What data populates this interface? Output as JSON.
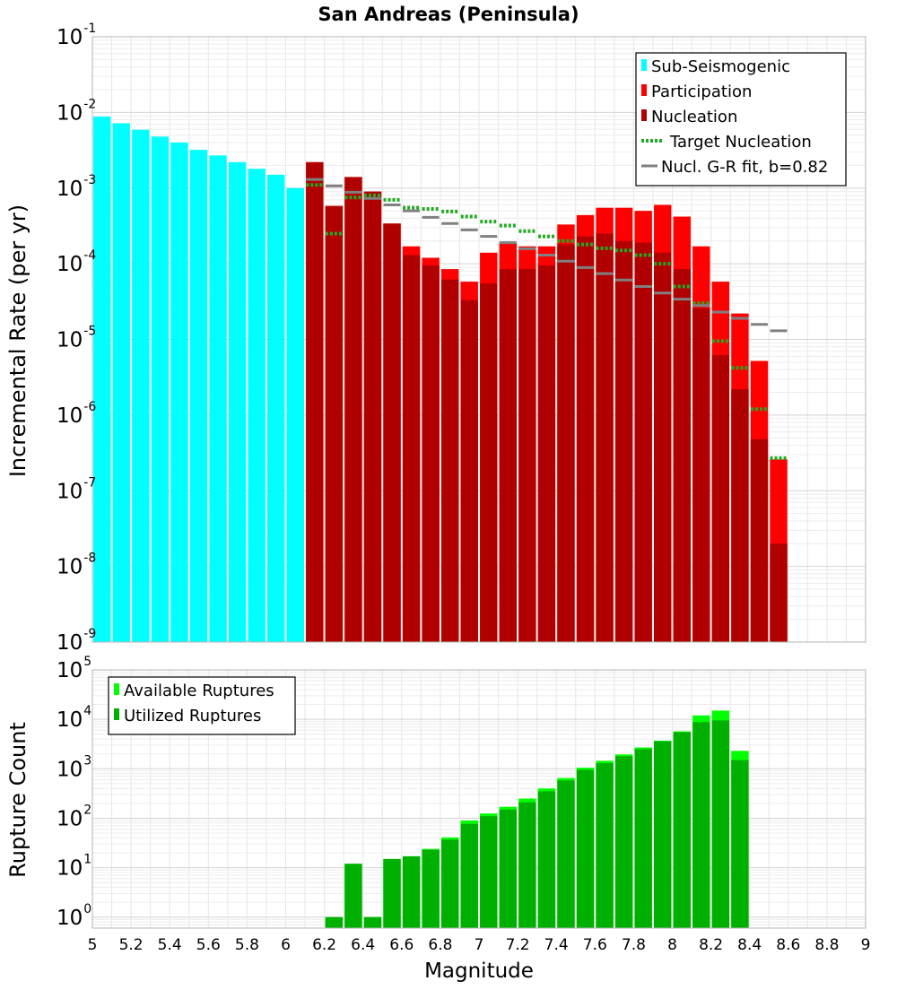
{
  "title": "San Andreas (Peninsula)",
  "xlabel": "Magnitude",
  "colors": {
    "sub_seismogenic": "#00ffff",
    "participation": "#ff0000",
    "nucleation": "#b00000",
    "target_nucleation": "#22aa22",
    "gr_fit": "#808080",
    "available": "#00ff00",
    "utilized": "#00b000"
  },
  "chart_data": [
    {
      "type": "bar",
      "title": "San Andreas (Peninsula)",
      "xlabel": "",
      "ylabel": "Incremental Rate (per yr)",
      "yscale": "log",
      "xlim": [
        5,
        9
      ],
      "ylim": [
        1e-09,
        0.1
      ],
      "xticks": [
        "5",
        "5.2",
        "5.4",
        "5.6",
        "5.8",
        "6",
        "6.2",
        "6.4",
        "6.6",
        "6.8",
        "7",
        "7.2",
        "7.4",
        "7.6",
        "7.8",
        "8",
        "8.2",
        "8.4",
        "8.6",
        "8.8",
        "9"
      ],
      "yticks": [
        {
          "base": "10",
          "exp": "-9"
        },
        {
          "base": "10",
          "exp": "-8"
        },
        {
          "base": "10",
          "exp": "-7"
        },
        {
          "base": "10",
          "exp": "-6"
        },
        {
          "base": "10",
          "exp": "-5"
        },
        {
          "base": "10",
          "exp": "-4"
        },
        {
          "base": "10",
          "exp": "-3"
        },
        {
          "base": "10",
          "exp": "-2"
        },
        {
          "base": "10",
          "exp": "-1"
        }
      ],
      "legend_position": "top-right",
      "series": [
        {
          "name": "Sub-Seismogenic",
          "style": "bar",
          "color": "#00ffff",
          "x": [
            5.05,
            5.15,
            5.25,
            5.35,
            5.45,
            5.55,
            5.65,
            5.75,
            5.85,
            5.95,
            6.05
          ],
          "values": [
            0.0088,
            0.0072,
            0.0059,
            0.0048,
            0.004,
            0.0032,
            0.0027,
            0.0022,
            0.0018,
            0.0015,
            0.001
          ]
        },
        {
          "name": "Participation",
          "style": "bar",
          "color": "#ff0000",
          "x": [
            6.15,
            6.25,
            6.35,
            6.45,
            6.55,
            6.65,
            6.75,
            6.85,
            6.95,
            7.05,
            7.15,
            7.25,
            7.35,
            7.45,
            7.55,
            7.65,
            7.75,
            7.85,
            7.95,
            8.05,
            8.15,
            8.25,
            8.35,
            8.45,
            8.55
          ],
          "values": [
            0.0022,
            0.00058,
            0.0014,
            0.0009,
            0.00034,
            0.00017,
            0.00012,
            8.5e-05,
            5.8e-05,
            0.00014,
            0.00019,
            0.00017,
            0.00017,
            0.00033,
            0.00044,
            0.00055,
            0.00055,
            0.0005,
            0.0006,
            0.00042,
            0.00017,
            5.8e-05,
            2.2e-05,
            5.2e-06,
            2.6e-07
          ]
        },
        {
          "name": "Nucleation",
          "style": "bar",
          "color": "#b00000",
          "x": [
            6.15,
            6.25,
            6.35,
            6.45,
            6.55,
            6.65,
            6.75,
            6.85,
            6.95,
            7.05,
            7.15,
            7.25,
            7.35,
            7.45,
            7.55,
            7.65,
            7.75,
            7.85,
            7.95,
            8.05,
            8.15,
            8.25,
            8.35,
            8.45,
            8.55
          ],
          "values": [
            0.0022,
            0.00058,
            0.0014,
            0.0009,
            0.00034,
            0.00013,
            9.5e-05,
            6.2e-05,
            3.3e-05,
            5.5e-05,
            8.5e-05,
            8.5e-05,
            9.5e-05,
            0.00018,
            0.00023,
            0.00025,
            0.0002,
            0.00019,
            0.00014,
            8.5e-05,
            2.6e-05,
            6.2e-06,
            2.2e-06,
            4.8e-07,
            2e-08
          ]
        },
        {
          "name": "Target Nucleation",
          "style": "step-dotted",
          "color": "#22aa22",
          "x": [
            6.15,
            6.25,
            6.35,
            6.45,
            6.55,
            6.65,
            6.75,
            6.85,
            6.95,
            7.05,
            7.15,
            7.25,
            7.35,
            7.45,
            7.55,
            7.65,
            7.75,
            7.85,
            7.95,
            8.05,
            8.15,
            8.25,
            8.35,
            8.45,
            8.55
          ],
          "values": [
            0.0011,
            0.00025,
            0.00075,
            0.0008,
            0.0007,
            0.00055,
            0.00053,
            0.00049,
            0.00042,
            0.00036,
            0.00032,
            0.00027,
            0.00023,
            0.0002,
            0.00018,
            0.00016,
            0.00015,
            0.00013,
            0.0001,
            5e-05,
            3e-05,
            9.5e-06,
            4.2e-06,
            1.2e-06,
            2.7e-07
          ]
        },
        {
          "name": "Nucl. G-R fit, b=0.82",
          "style": "step",
          "color": "#808080",
          "x": [
            6.15,
            6.25,
            6.35,
            6.45,
            6.55,
            6.65,
            6.75,
            6.85,
            6.95,
            7.05,
            7.15,
            7.25,
            7.35,
            7.45,
            7.55,
            7.65,
            7.75,
            7.85,
            7.95,
            8.05,
            8.15,
            8.25,
            8.35,
            8.45,
            8.55
          ],
          "values": [
            0.0013,
            0.00107,
            0.00088,
            0.00073,
            0.0006,
            0.0005,
            0.00041,
            0.00034,
            0.00028,
            0.00023,
            0.00019,
            0.000158,
            0.00013,
            0.000108,
            8.9e-05,
            7.4e-05,
            6.1e-05,
            5e-05,
            4.1e-05,
            3.4e-05,
            2.8e-05,
            2.3e-05,
            1.9e-05,
            1.58e-05,
            1.3e-05
          ]
        }
      ]
    },
    {
      "type": "bar",
      "xlabel": "Magnitude",
      "ylabel": "Rupture Count",
      "yscale": "log",
      "xlim": [
        5,
        9
      ],
      "ylim": [
        0.6,
        100000
      ],
      "yticks": [
        {
          "base": "10",
          "exp": "0"
        },
        {
          "base": "10",
          "exp": "1"
        },
        {
          "base": "10",
          "exp": "2"
        },
        {
          "base": "10",
          "exp": "3"
        },
        {
          "base": "10",
          "exp": "4"
        },
        {
          "base": "10",
          "exp": "5"
        }
      ],
      "legend_position": "top-left",
      "series": [
        {
          "name": "Available Ruptures",
          "style": "bar",
          "color": "#00ff00",
          "x": [
            6.25,
            6.35,
            6.45,
            6.55,
            6.65,
            6.75,
            6.85,
            6.95,
            7.05,
            7.15,
            7.25,
            7.35,
            7.45,
            7.55,
            7.65,
            7.75,
            7.85,
            7.95,
            8.05,
            8.15,
            8.25,
            8.35
          ],
          "values": [
            1,
            12,
            1,
            15,
            17,
            24,
            41,
            90,
            125,
            170,
            250,
            400,
            650,
            1050,
            1450,
            1950,
            2700,
            3700,
            5700,
            12000,
            15000,
            2300
          ]
        },
        {
          "name": "Utilized Ruptures",
          "style": "bar",
          "color": "#00b000",
          "x": [
            6.25,
            6.35,
            6.45,
            6.55,
            6.65,
            6.75,
            6.85,
            6.95,
            7.05,
            7.15,
            7.25,
            7.35,
            7.45,
            7.55,
            7.65,
            7.75,
            7.85,
            7.95,
            8.05,
            8.15,
            8.25,
            8.35
          ],
          "values": [
            1,
            12,
            1,
            15,
            17,
            23,
            37,
            77,
            110,
            150,
            210,
            350,
            580,
            950,
            1300,
            1800,
            2500,
            3600,
            5500,
            8800,
            9500,
            1500
          ]
        }
      ]
    }
  ]
}
